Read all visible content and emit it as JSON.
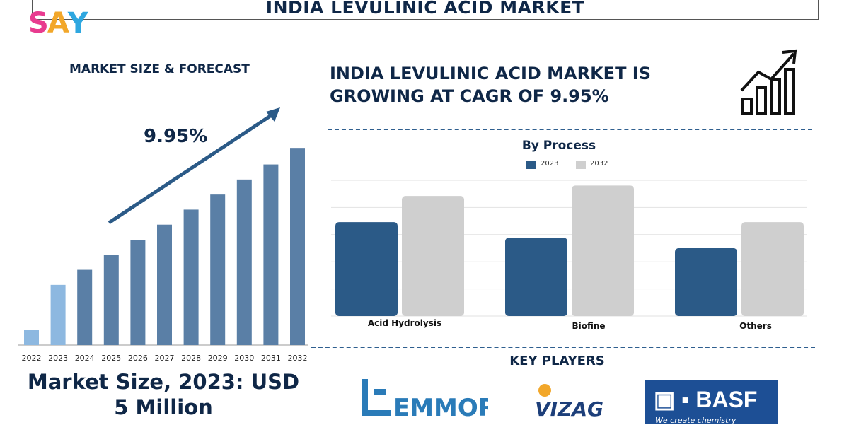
{
  "title": "INDIA LEVULINIC ACID MARKET",
  "logo": {
    "letters": [
      "S",
      "A",
      "Y"
    ],
    "colors": [
      "#e83b8f",
      "#f2a72a",
      "#2ea7e0"
    ]
  },
  "left_panel": {
    "heading": "MARKET SIZE & FORECAST",
    "cagr_label": "9.95%",
    "market_size_text": "Market Size, 2023: USD 5 Million"
  },
  "right_panel": {
    "heading": "INDIA LEVULINIC ACID MARKET IS GROWING AT CAGR OF 9.95%",
    "icon": "growth-chart-icon"
  },
  "key_players": {
    "heading": "KEY PLAYERS",
    "logos": [
      "EMMORE",
      "VIZAG",
      "BASF"
    ],
    "basf_subtitle": "We create chemistry"
  },
  "chart_data": [
    {
      "type": "bar",
      "categories": [
        "2022",
        "2023",
        "2024",
        "2025",
        "2026",
        "2027",
        "2028",
        "2029",
        "2030",
        "2031",
        "2032"
      ],
      "values": [
        1.0,
        4.0,
        5.0,
        6.0,
        7.0,
        8.0,
        9.0,
        10.0,
        11.0,
        12.0,
        13.1
      ],
      "title": "",
      "xlabel": "",
      "ylabel": "",
      "ylim": [
        0,
        14
      ],
      "colors": [
        "#8db8e0",
        "#8db8e0",
        "#5a7fa6",
        "#5a7fa6",
        "#5a7fa6",
        "#5a7fa6",
        "#5a7fa6",
        "#5a7fa6",
        "#5a7fa6",
        "#5a7fa6",
        "#5a7fa6"
      ],
      "annotation": "9.95%"
    },
    {
      "type": "bar",
      "title": "By Process",
      "categories": [
        "Acid Hydrolysis",
        "Biofine",
        "Others"
      ],
      "series": [
        {
          "name": "2023",
          "values": [
            3.6,
            3.0,
            2.6
          ],
          "color": "#2b5a87"
        },
        {
          "name": "2032",
          "values": [
            4.6,
            5.0,
            3.6
          ],
          "color": "#cfcfcf"
        }
      ],
      "ylim": [
        0,
        5.2
      ],
      "grid": true,
      "legend": "top"
    }
  ]
}
